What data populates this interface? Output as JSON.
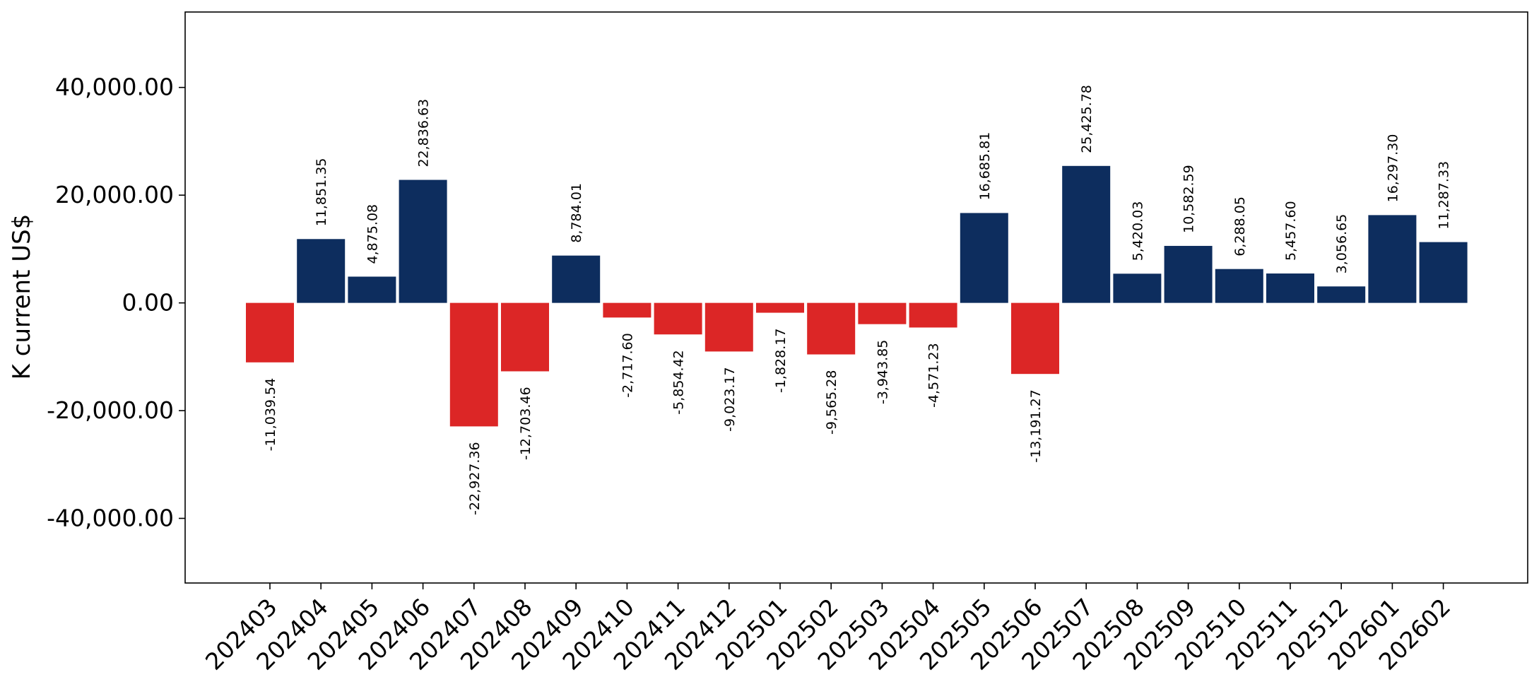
{
  "chart_data": {
    "type": "bar",
    "title": "",
    "xlabel": "",
    "ylabel": "K current US$",
    "ylim": [
      -52000,
      54000
    ],
    "yticks": [
      -40000,
      -20000,
      0,
      20000,
      40000
    ],
    "ytick_labels": [
      "-40,000.00",
      "-20,000.00",
      "0.00",
      "20,000.00",
      "40,000.00"
    ],
    "grid": false,
    "legend": "none",
    "colors": {
      "positive": "#0d2d5e",
      "negative": "#dc2626",
      "axis": "#000000"
    },
    "categories": [
      "202403",
      "202404",
      "202405",
      "202406",
      "202407",
      "202408",
      "202409",
      "202410",
      "202411",
      "202412",
      "202501",
      "202502",
      "202503",
      "202504",
      "202505",
      "202506",
      "202507",
      "202508",
      "202509",
      "202510",
      "202511",
      "202512",
      "202601",
      "202602"
    ],
    "values": [
      -11039.54,
      11851.35,
      4875.08,
      22836.63,
      -22927.36,
      -12703.46,
      8784.01,
      -2717.6,
      -5854.42,
      -9023.17,
      -1828.17,
      -9565.28,
      -3943.85,
      -4571.23,
      16685.81,
      -13191.27,
      25425.78,
      5420.03,
      10582.59,
      6288.05,
      5457.6,
      3056.65,
      16297.3,
      11287.33
    ],
    "value_labels": [
      "-11,039.54",
      "11,851.35",
      "4,875.08",
      "22,836.63",
      "-22,927.36",
      "-12,703.46",
      "8,784.01",
      "-2,717.60",
      "-5,854.42",
      "-9,023.17",
      "-1,828.17",
      "-9,565.28",
      "-3,943.85",
      "-4,571.23",
      "16,685.81",
      "-13,191.27",
      "25,425.78",
      "5,420.03",
      "10,582.59",
      "6,288.05",
      "5,457.60",
      "3,056.65",
      "16,297.30",
      "11,287.33"
    ]
  }
}
